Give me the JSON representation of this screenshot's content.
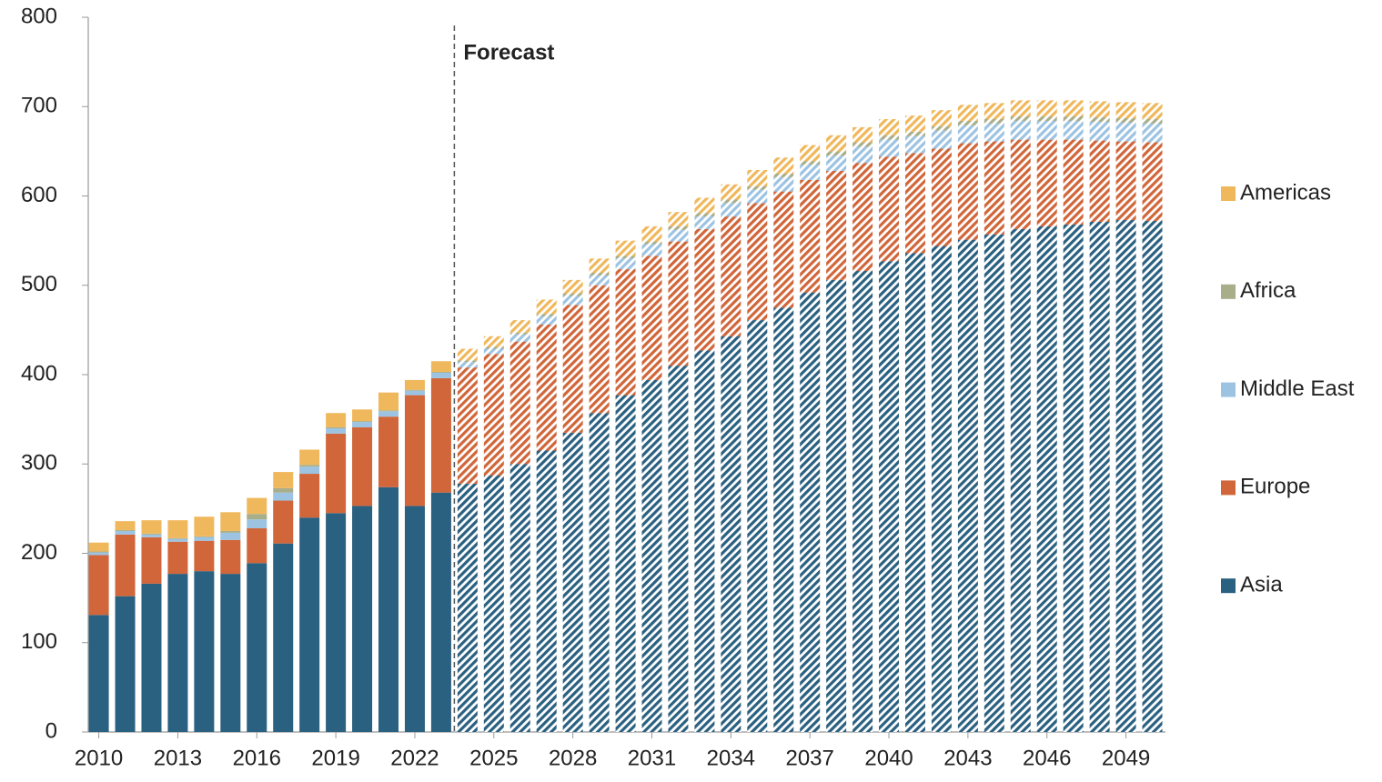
{
  "chart_data": {
    "type": "stacked_bar",
    "x": [
      2010,
      2011,
      2012,
      2013,
      2014,
      2015,
      2016,
      2017,
      2018,
      2019,
      2020,
      2021,
      2022,
      2023,
      2024,
      2025,
      2026,
      2027,
      2028,
      2029,
      2030,
      2031,
      2032,
      2033,
      2034,
      2035,
      2036,
      2037,
      2038,
      2039,
      2040,
      2041,
      2042,
      2043,
      2044,
      2045,
      2046,
      2047,
      2048,
      2049,
      2050
    ],
    "xlim": [
      2009.6,
      2050.5
    ],
    "xticks": [
      2010,
      2013,
      2016,
      2019,
      2022,
      2025,
      2028,
      2031,
      2034,
      2037,
      2040,
      2043,
      2046,
      2049
    ],
    "ylim": [
      0,
      800
    ],
    "yticks": [
      0,
      100,
      200,
      300,
      400,
      500,
      600,
      700,
      800
    ],
    "grid": false,
    "legend": "right",
    "annotations": [
      {
        "text": "Forecast",
        "x": 2024
      }
    ],
    "series": [
      {
        "name": "Asia",
        "color": "#2a6080",
        "values": [
          131,
          152,
          166,
          177,
          180,
          177,
          189,
          211,
          240,
          245,
          253,
          274,
          253,
          268,
          278,
          287,
          300,
          315,
          335,
          357,
          377,
          394,
          410,
          427,
          443,
          461,
          475,
          492,
          506,
          516,
          527,
          536,
          544,
          551,
          557,
          563,
          566,
          568,
          571,
          573,
          572
        ]
      },
      {
        "name": "Europe",
        "color": "#d0663a",
        "values": [
          67,
          69,
          52,
          36,
          34,
          38,
          39,
          48,
          49,
          89,
          88,
          79,
          124,
          128,
          130,
          136,
          137,
          141,
          143,
          143,
          141,
          139,
          139,
          136,
          134,
          131,
          130,
          126,
          122,
          121,
          117,
          112,
          109,
          108,
          104,
          100,
          97,
          95,
          91,
          88,
          88
        ]
      },
      {
        "name": "Middle East",
        "color": "#9dc3e2",
        "values": [
          3,
          4,
          3,
          3,
          4,
          8,
          10,
          9,
          8,
          6,
          6,
          6,
          5,
          6,
          6,
          6,
          8,
          9,
          10,
          11,
          12,
          13,
          13,
          14,
          15,
          15,
          16,
          17,
          17,
          18,
          19,
          19,
          20,
          20,
          20,
          21,
          21,
          21,
          21,
          21,
          21
        ]
      },
      {
        "name": "Africa",
        "color": "#a8ad8a",
        "values": [
          1,
          1,
          1,
          1,
          1,
          2,
          6,
          5,
          2,
          1,
          1,
          1,
          1,
          1,
          2,
          2,
          2,
          3,
          3,
          3,
          3,
          3,
          4,
          4,
          4,
          4,
          4,
          4,
          5,
          5,
          5,
          5,
          5,
          5,
          5,
          5,
          5,
          5,
          5,
          5,
          5
        ]
      },
      {
        "name": "Americas",
        "color": "#f0b85c",
        "values": [
          10,
          10,
          15,
          20,
          22,
          21,
          18,
          18,
          17,
          16,
          13,
          20,
          11,
          12,
          13,
          12,
          14,
          16,
          15,
          16,
          17,
          17,
          16,
          17,
          17,
          18,
          18,
          18,
          18,
          17,
          18,
          18,
          18,
          18,
          18,
          18,
          18,
          18,
          18,
          18,
          18
        ]
      }
    ]
  }
}
